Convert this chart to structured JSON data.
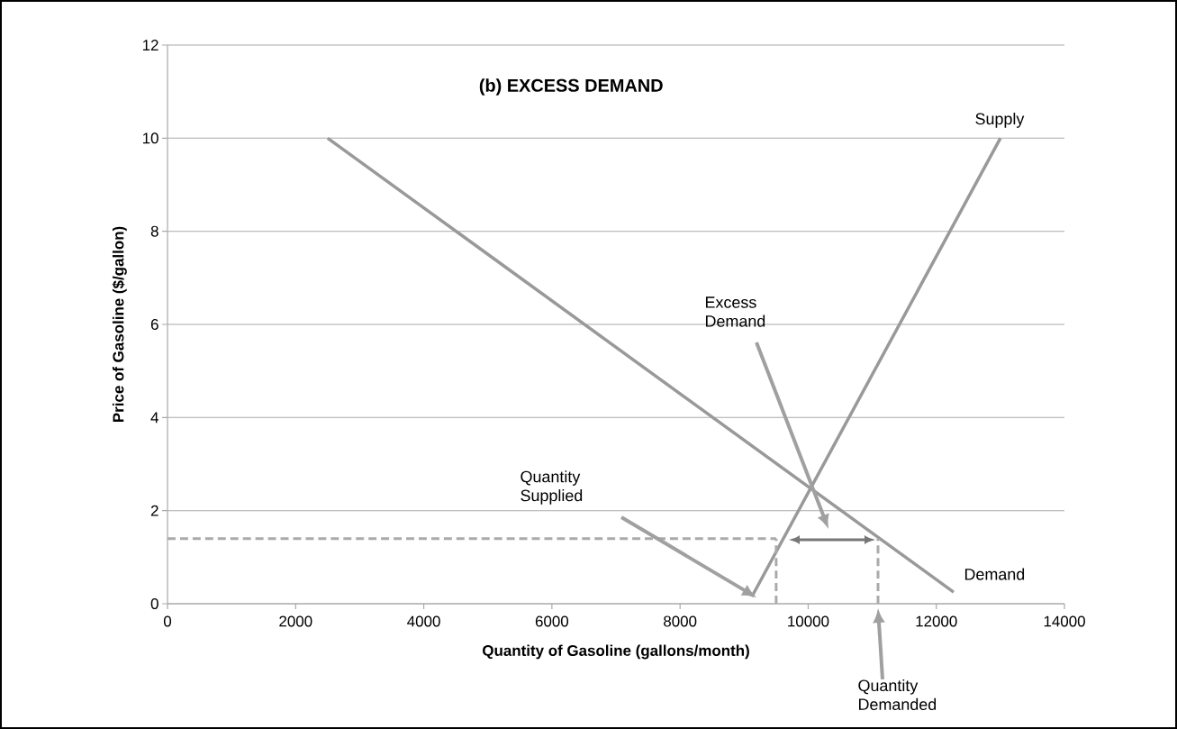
{
  "chart_data": {
    "type": "line",
    "title": "(b) EXCESS DEMAND",
    "xlabel": "Quantity of Gasoline (gallons/month)",
    "ylabel": "Price of Gasoline ($/gallon)",
    "xlim": [
      0,
      14000
    ],
    "ylim": [
      0,
      12
    ],
    "xticks": [
      0,
      2000,
      4000,
      6000,
      8000,
      10000,
      12000,
      14000
    ],
    "yticks": [
      0,
      2,
      4,
      6,
      8,
      10,
      12
    ],
    "grid": "y",
    "marker": "none",
    "line_style": "solid",
    "series": [
      {
        "name": "Demand",
        "color": "#999999",
        "x": [
          2500,
          12270
        ],
        "values": [
          10,
          0.25
        ]
      },
      {
        "name": "Supply",
        "color": "#999999",
        "x": [
          9120,
          13000
        ],
        "values": [
          0.15,
          10
        ]
      },
      {
        "color": "#aaaaaa",
        "line_style": "dashed",
        "x": [
          0,
          9500
        ],
        "values": [
          1.4,
          1.4
        ]
      },
      {
        "color": "#aaaaaa",
        "line_style": "dashed",
        "x": [
          9500,
          9500
        ],
        "values": [
          0,
          1.4
        ]
      },
      {
        "color": "#aaaaaa",
        "line_style": "dashed",
        "x": [
          11090,
          11090
        ],
        "values": [
          0,
          1.4
        ]
      }
    ],
    "annotations": [
      "Excess Demand",
      "Quantity Supplied",
      "Quantity Demanded"
    ]
  }
}
